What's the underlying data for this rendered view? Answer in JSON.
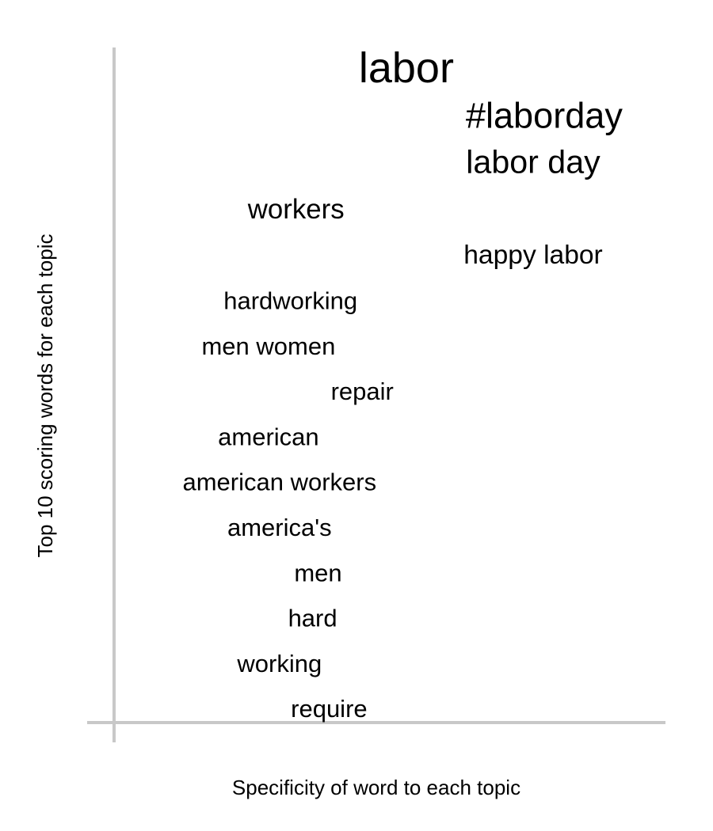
{
  "chart_data": {
    "type": "scatter",
    "subtype": "word-specificity",
    "xlabel": "Specificity of word to each topic",
    "ylabel": "Top 10 scoring words for each topic",
    "xlim": [
      0,
      1
    ],
    "grid": false,
    "words": [
      {
        "word": "labor",
        "specificity": 0.53,
        "score": 1.0
      },
      {
        "word": "#laborday",
        "specificity": 0.78,
        "score": 0.86
      },
      {
        "word": "labor day",
        "specificity": 0.76,
        "score": 0.8
      },
      {
        "word": "workers",
        "specificity": 0.33,
        "score": 0.7
      },
      {
        "word": "happy labor",
        "specificity": 0.76,
        "score": 0.68
      },
      {
        "word": "hardworking",
        "specificity": 0.32,
        "score": 0.64
      },
      {
        "word": "men women",
        "specificity": 0.28,
        "score": 0.64
      },
      {
        "word": "repair",
        "specificity": 0.45,
        "score": 0.64
      },
      {
        "word": "american",
        "specificity": 0.28,
        "score": 0.64
      },
      {
        "word": "american workers",
        "specificity": 0.3,
        "score": 0.64
      },
      {
        "word": "america's",
        "specificity": 0.3,
        "score": 0.64
      },
      {
        "word": "men",
        "specificity": 0.37,
        "score": 0.64
      },
      {
        "word": "hard",
        "specificity": 0.36,
        "score": 0.64
      },
      {
        "word": "working",
        "specificity": 0.3,
        "score": 0.64
      },
      {
        "word": "require",
        "specificity": 0.39,
        "score": 0.64
      }
    ],
    "colors": {
      "text": "#000000",
      "axis": "#c8c8c8",
      "background": "#ffffff"
    }
  }
}
